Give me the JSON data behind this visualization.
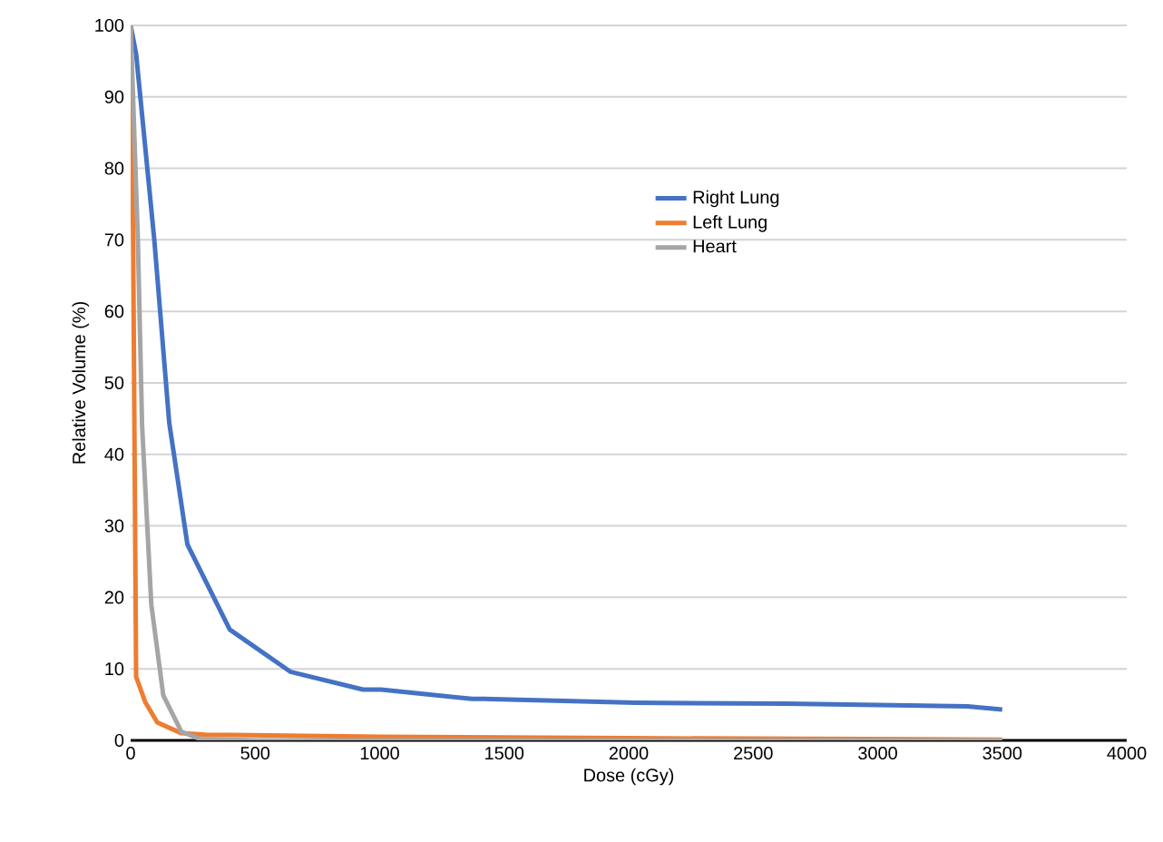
{
  "chart_data": {
    "type": "line",
    "xlabel": "Dose (cGy)",
    "ylabel": "Relative Volume (%)",
    "xlim": [
      0,
      4000
    ],
    "xticks": [
      0,
      500,
      1000,
      1500,
      2000,
      2500,
      3000,
      3500,
      4000
    ],
    "ylim": [
      0,
      100
    ],
    "yticks": [
      0,
      10,
      20,
      30,
      40,
      50,
      60,
      70,
      80,
      90,
      100
    ],
    "grid": "y",
    "legend": "top",
    "marker": "none",
    "line_style": "solid",
    "series": [
      {
        "name": "Right Lung",
        "color": "#4472c4",
        "x": [
          0,
          22,
          95,
          155,
          228,
          398,
          641,
          933,
          1005,
          1370,
          1418,
          2025,
          2630,
          3360,
          3500
        ],
        "values": [
          100,
          96,
          70,
          44.4,
          27.4,
          15.5,
          9.6,
          7.1,
          7.1,
          5.8,
          5.8,
          5.25,
          5.15,
          4.75,
          4.3
        ]
      },
      {
        "name": "Left Lung",
        "color": "#ed7d31",
        "x": [
          0,
          10,
          22,
          58,
          107,
          204,
          300,
          1000,
          2000,
          3500
        ],
        "values": [
          100,
          70,
          8.9,
          5.4,
          2.5,
          1,
          0.8,
          0.5,
          0.3,
          0.1
        ]
      },
      {
        "name": "Heart",
        "color": "#a5a5a5",
        "x": [
          0,
          29,
          46,
          83,
          131,
          204,
          277,
          500,
          3500
        ],
        "values": [
          100,
          70,
          44,
          19,
          6.3,
          1.2,
          0.2,
          0,
          0
        ]
      }
    ]
  }
}
